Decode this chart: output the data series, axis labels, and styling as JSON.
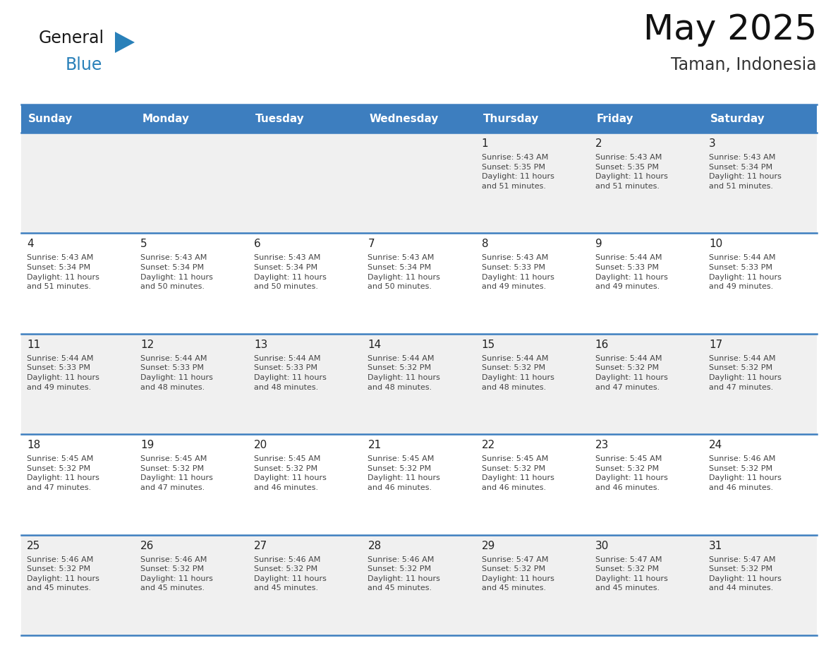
{
  "title": "May 2025",
  "subtitle": "Taman, Indonesia",
  "header_bg_color": "#3d7ebf",
  "header_text_color": "#FFFFFF",
  "cell_bg_color_odd": "#F0F0F0",
  "cell_bg_color_even": "#FFFFFF",
  "border_color": "#3d7ebf",
  "day_names": [
    "Sunday",
    "Monday",
    "Tuesday",
    "Wednesday",
    "Thursday",
    "Friday",
    "Saturday"
  ],
  "weeks": [
    [
      {
        "day": "",
        "info": ""
      },
      {
        "day": "",
        "info": ""
      },
      {
        "day": "",
        "info": ""
      },
      {
        "day": "",
        "info": ""
      },
      {
        "day": "1",
        "info": "Sunrise: 5:43 AM\nSunset: 5:35 PM\nDaylight: 11 hours\nand 51 minutes."
      },
      {
        "day": "2",
        "info": "Sunrise: 5:43 AM\nSunset: 5:35 PM\nDaylight: 11 hours\nand 51 minutes."
      },
      {
        "day": "3",
        "info": "Sunrise: 5:43 AM\nSunset: 5:34 PM\nDaylight: 11 hours\nand 51 minutes."
      }
    ],
    [
      {
        "day": "4",
        "info": "Sunrise: 5:43 AM\nSunset: 5:34 PM\nDaylight: 11 hours\nand 51 minutes."
      },
      {
        "day": "5",
        "info": "Sunrise: 5:43 AM\nSunset: 5:34 PM\nDaylight: 11 hours\nand 50 minutes."
      },
      {
        "day": "6",
        "info": "Sunrise: 5:43 AM\nSunset: 5:34 PM\nDaylight: 11 hours\nand 50 minutes."
      },
      {
        "day": "7",
        "info": "Sunrise: 5:43 AM\nSunset: 5:34 PM\nDaylight: 11 hours\nand 50 minutes."
      },
      {
        "day": "8",
        "info": "Sunrise: 5:43 AM\nSunset: 5:33 PM\nDaylight: 11 hours\nand 49 minutes."
      },
      {
        "day": "9",
        "info": "Sunrise: 5:44 AM\nSunset: 5:33 PM\nDaylight: 11 hours\nand 49 minutes."
      },
      {
        "day": "10",
        "info": "Sunrise: 5:44 AM\nSunset: 5:33 PM\nDaylight: 11 hours\nand 49 minutes."
      }
    ],
    [
      {
        "day": "11",
        "info": "Sunrise: 5:44 AM\nSunset: 5:33 PM\nDaylight: 11 hours\nand 49 minutes."
      },
      {
        "day": "12",
        "info": "Sunrise: 5:44 AM\nSunset: 5:33 PM\nDaylight: 11 hours\nand 48 minutes."
      },
      {
        "day": "13",
        "info": "Sunrise: 5:44 AM\nSunset: 5:33 PM\nDaylight: 11 hours\nand 48 minutes."
      },
      {
        "day": "14",
        "info": "Sunrise: 5:44 AM\nSunset: 5:32 PM\nDaylight: 11 hours\nand 48 minutes."
      },
      {
        "day": "15",
        "info": "Sunrise: 5:44 AM\nSunset: 5:32 PM\nDaylight: 11 hours\nand 48 minutes."
      },
      {
        "day": "16",
        "info": "Sunrise: 5:44 AM\nSunset: 5:32 PM\nDaylight: 11 hours\nand 47 minutes."
      },
      {
        "day": "17",
        "info": "Sunrise: 5:44 AM\nSunset: 5:32 PM\nDaylight: 11 hours\nand 47 minutes."
      }
    ],
    [
      {
        "day": "18",
        "info": "Sunrise: 5:45 AM\nSunset: 5:32 PM\nDaylight: 11 hours\nand 47 minutes."
      },
      {
        "day": "19",
        "info": "Sunrise: 5:45 AM\nSunset: 5:32 PM\nDaylight: 11 hours\nand 47 minutes."
      },
      {
        "day": "20",
        "info": "Sunrise: 5:45 AM\nSunset: 5:32 PM\nDaylight: 11 hours\nand 46 minutes."
      },
      {
        "day": "21",
        "info": "Sunrise: 5:45 AM\nSunset: 5:32 PM\nDaylight: 11 hours\nand 46 minutes."
      },
      {
        "day": "22",
        "info": "Sunrise: 5:45 AM\nSunset: 5:32 PM\nDaylight: 11 hours\nand 46 minutes."
      },
      {
        "day": "23",
        "info": "Sunrise: 5:45 AM\nSunset: 5:32 PM\nDaylight: 11 hours\nand 46 minutes."
      },
      {
        "day": "24",
        "info": "Sunrise: 5:46 AM\nSunset: 5:32 PM\nDaylight: 11 hours\nand 46 minutes."
      }
    ],
    [
      {
        "day": "25",
        "info": "Sunrise: 5:46 AM\nSunset: 5:32 PM\nDaylight: 11 hours\nand 45 minutes."
      },
      {
        "day": "26",
        "info": "Sunrise: 5:46 AM\nSunset: 5:32 PM\nDaylight: 11 hours\nand 45 minutes."
      },
      {
        "day": "27",
        "info": "Sunrise: 5:46 AM\nSunset: 5:32 PM\nDaylight: 11 hours\nand 45 minutes."
      },
      {
        "day": "28",
        "info": "Sunrise: 5:46 AM\nSunset: 5:32 PM\nDaylight: 11 hours\nand 45 minutes."
      },
      {
        "day": "29",
        "info": "Sunrise: 5:47 AM\nSunset: 5:32 PM\nDaylight: 11 hours\nand 45 minutes."
      },
      {
        "day": "30",
        "info": "Sunrise: 5:47 AM\nSunset: 5:32 PM\nDaylight: 11 hours\nand 45 minutes."
      },
      {
        "day": "31",
        "info": "Sunrise: 5:47 AM\nSunset: 5:32 PM\nDaylight: 11 hours\nand 44 minutes."
      }
    ]
  ],
  "logo_text_general": "General",
  "logo_text_blue": "Blue",
  "logo_color_general": "#1a1a1a",
  "logo_color_blue": "#2980B9",
  "logo_triangle_color": "#2980B9",
  "fig_width": 11.88,
  "fig_height": 9.18,
  "dpi": 100
}
